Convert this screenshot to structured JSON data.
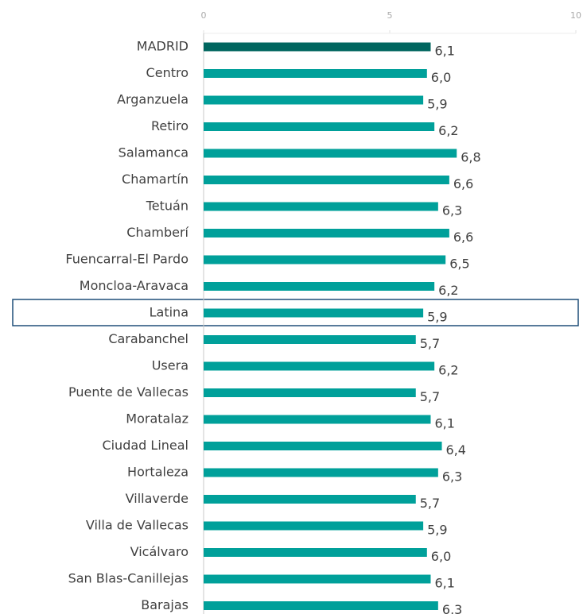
{
  "chart_data": {
    "type": "hbar",
    "categories": [
      "MADRID",
      "Centro",
      "Arganzuela",
      "Retiro",
      "Salamanca",
      "Chamartín",
      "Tetuán",
      "Chamberí",
      "Fuencarral-El Pardo",
      "Moncloa-Aravaca",
      "Latina",
      "Carabanchel",
      "Usera",
      "Puente de Vallecas",
      "Moratalaz",
      "Ciudad Lineal",
      "Hortaleza",
      "Villaverde",
      "Villa de Vallecas",
      "Vicálvaro",
      "San Blas-Canillejas",
      "Barajas"
    ],
    "values": [
      6.1,
      6.0,
      5.9,
      6.2,
      6.8,
      6.6,
      6.3,
      6.6,
      6.5,
      6.2,
      5.9,
      5.7,
      6.2,
      5.7,
      6.1,
      6.4,
      6.3,
      5.7,
      5.9,
      6.0,
      6.1,
      6.3
    ],
    "value_labels": [
      "6,1",
      "6,0",
      "5,9",
      "6,2",
      "6,8",
      "6,6",
      "6,3",
      "6,6",
      "6,5",
      "6,2",
      "5,9",
      "5,7",
      "6,2",
      "5,7",
      "6,1",
      "6,4",
      "6,3",
      "5,7",
      "5,9",
      "6,0",
      "6,1",
      "6,3"
    ],
    "colors": [
      "#00665f",
      "#00a09a",
      "#00a09a",
      "#00a09a",
      "#00a09a",
      "#00a09a",
      "#00a09a",
      "#00a09a",
      "#00a09a",
      "#00a09a",
      "#00a09a",
      "#00a09a",
      "#00a09a",
      "#00a09a",
      "#00a09a",
      "#00a09a",
      "#00a09a",
      "#00a09a",
      "#00a09a",
      "#00a09a",
      "#00a09a",
      "#00a09a"
    ],
    "xlim": [
      0,
      10
    ],
    "xticks": [
      0,
      5,
      10
    ]
  }
}
